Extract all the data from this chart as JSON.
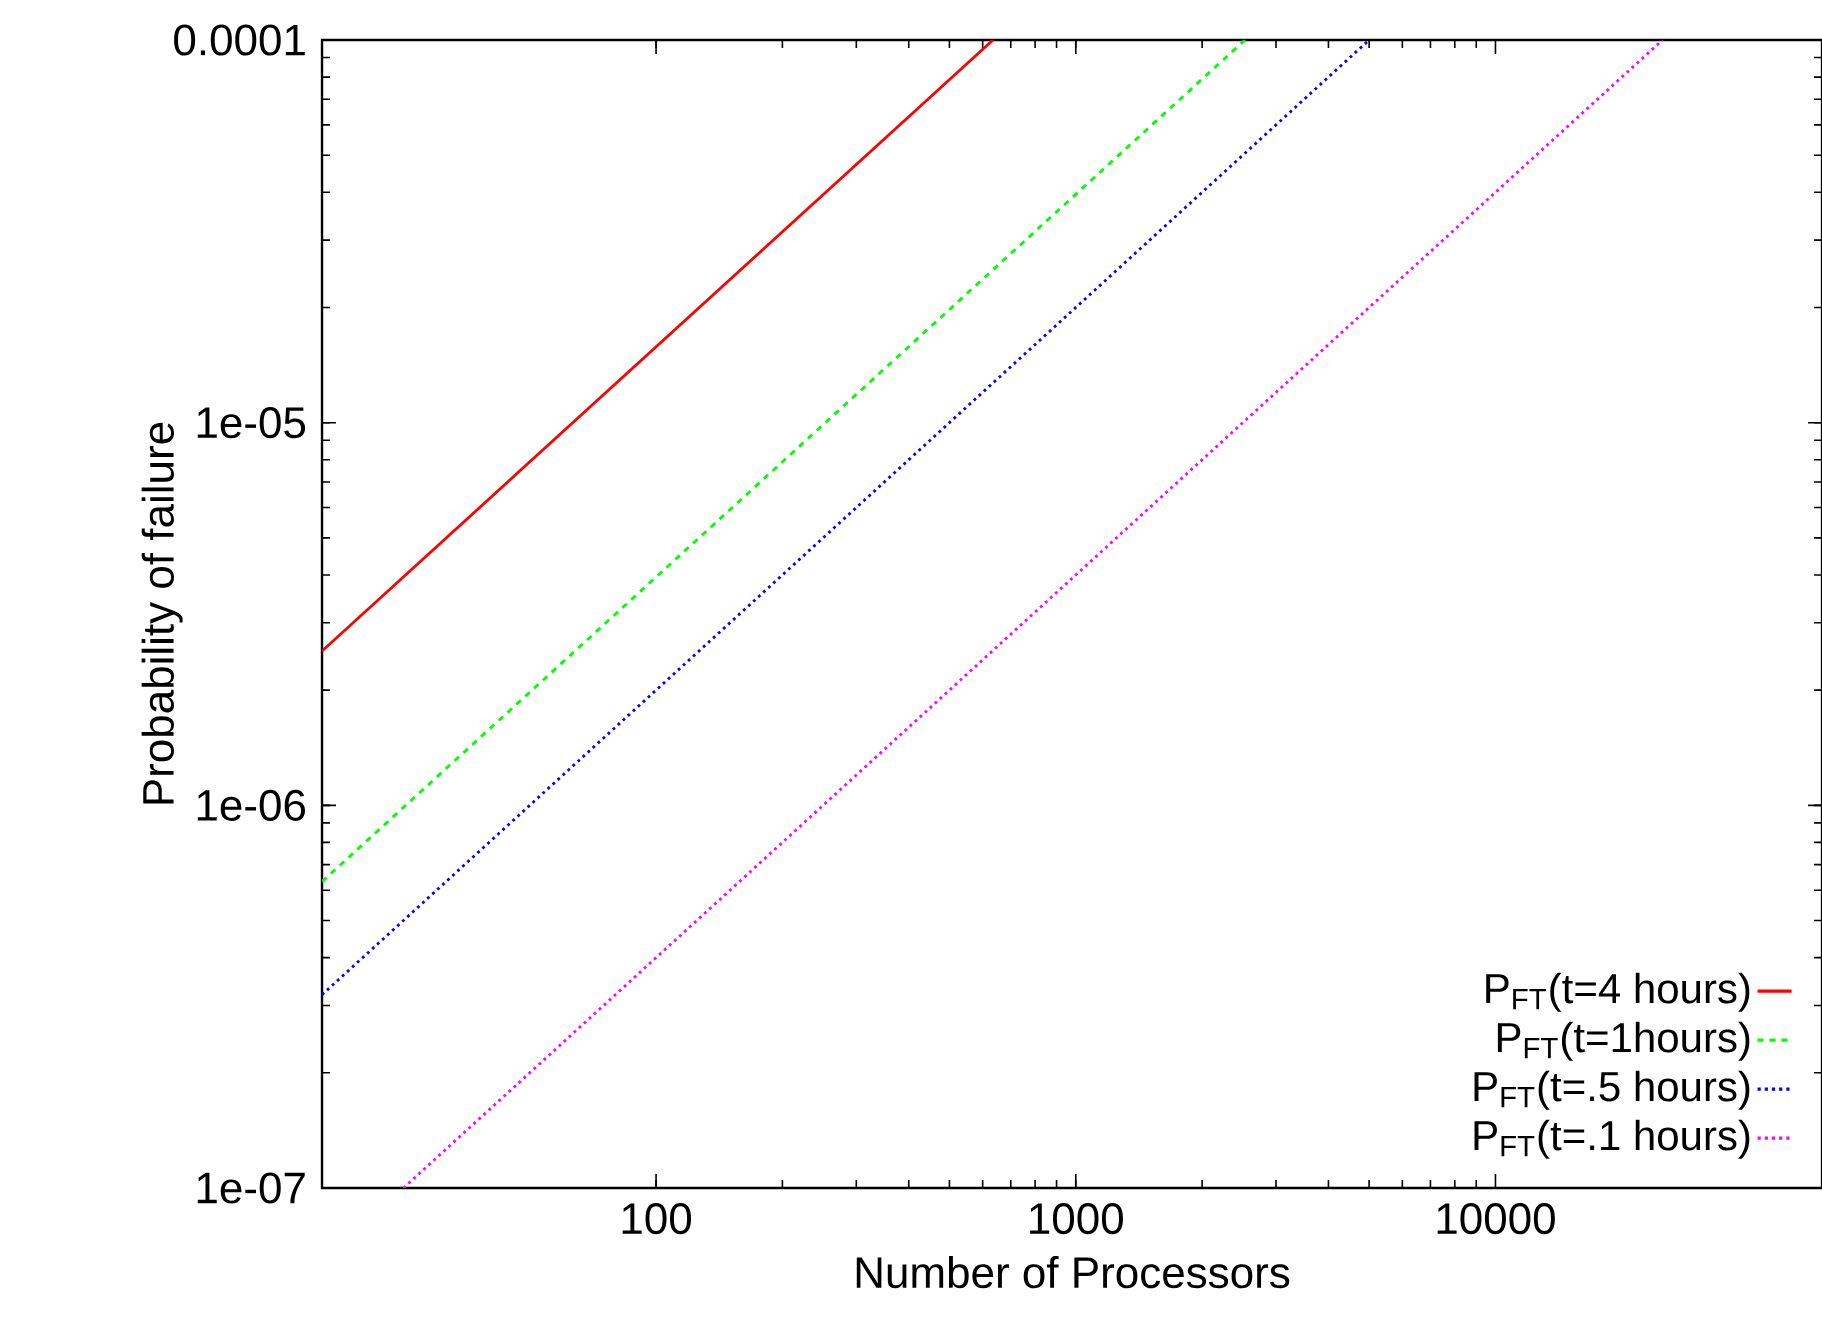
{
  "chart_data": {
    "type": "line",
    "xlabel": "Number of Processors",
    "ylabel": "Probability of failure",
    "log": "xy",
    "legend": "bottom right",
    "xlim": [
      16,
      60000
    ],
    "ylim": [
      1e-07,
      0.0001
    ],
    "xticks": [
      100,
      1000,
      10000
    ],
    "yticks": [
      {
        "value": 1e-07,
        "label": "1e-07"
      },
      {
        "value": 1e-06,
        "label": "1e-06"
      },
      {
        "value": 1e-05,
        "label": "1e-05"
      },
      {
        "value": 0.0001,
        "label": "0.0001"
      }
    ],
    "series": [
      {
        "name": "P$_{FT}$(t=4 hours)",
        "color": "#ff0000",
        "line_style": "solid",
        "x": [
          16,
          635
        ],
        "values": [
          2.53e-06,
          0.0001
        ]
      },
      {
        "name": "P$_{FT}$(t=1hours)",
        "color": "#00ff00",
        "line_style": "dashed",
        "x": [
          16,
          2530
        ],
        "values": [
          6.32e-07,
          0.0001
        ]
      },
      {
        "name": "P$_{FT}$(t=.5 hours)",
        "color": "#0000ff",
        "line_style": "dotted",
        "x": [
          16,
          5000
        ],
        "values": [
          3.2e-07,
          0.0001
        ]
      },
      {
        "name": "P$_{FT}$(t=.1 hours)",
        "color": "#ff00ff",
        "line_style": "dotted",
        "x": [
          25,
          25000
        ],
        "values": [
          1e-07,
          0.0001
        ]
      }
    ]
  }
}
